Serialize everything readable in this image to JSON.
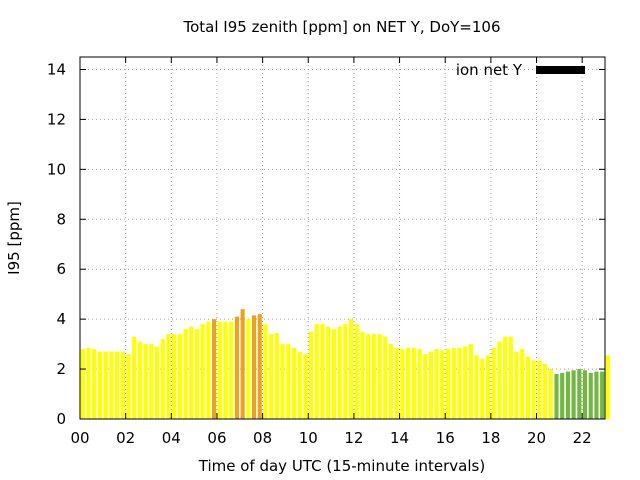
{
  "chart_data": {
    "type": "bar",
    "title": "Total I95 zenith [ppm] on NET Y, DoY=106",
    "xlabel": "Time of day UTC (15-minute intervals)",
    "ylabel": "I95 [ppm]",
    "xlim": [
      0,
      23
    ],
    "ylim": [
      0,
      14.5
    ],
    "grid": true,
    "legend": {
      "position": "top-right",
      "entries": [
        {
          "label": "ion net Y",
          "color": "#000000"
        }
      ]
    },
    "x_ticks": [
      {
        "value": 0,
        "label": "00"
      },
      {
        "value": 2,
        "label": "02"
      },
      {
        "value": 4,
        "label": "04"
      },
      {
        "value": 6,
        "label": "06"
      },
      {
        "value": 8,
        "label": "08"
      },
      {
        "value": 10,
        "label": "10"
      },
      {
        "value": 12,
        "label": "12"
      },
      {
        "value": 14,
        "label": "14"
      },
      {
        "value": 16,
        "label": "16"
      },
      {
        "value": 18,
        "label": "18"
      },
      {
        "value": 20,
        "label": "20"
      },
      {
        "value": 22,
        "label": "22"
      }
    ],
    "y_ticks": [
      {
        "value": 0,
        "label": "0"
      },
      {
        "value": 2,
        "label": "2"
      },
      {
        "value": 4,
        "label": "4"
      },
      {
        "value": 6,
        "label": "6"
      },
      {
        "value": 8,
        "label": "8"
      },
      {
        "value": 10,
        "label": "10"
      },
      {
        "value": 12,
        "label": "12"
      },
      {
        "value": 14,
        "label": "14"
      }
    ],
    "bar_interval_hours": 0.25,
    "colors": {
      "yellow": "#ffff00",
      "orange": "#f0a020",
      "green": "#70b840"
    },
    "values": [
      2.8,
      2.85,
      2.8,
      2.7,
      2.7,
      2.7,
      2.7,
      2.7,
      2.6,
      3.3,
      3.1,
      3.0,
      3.0,
      2.9,
      3.2,
      3.4,
      3.4,
      3.4,
      3.6,
      3.7,
      3.6,
      3.8,
      3.9,
      4.0,
      3.9,
      3.9,
      3.9,
      4.1,
      4.4,
      4.0,
      4.15,
      4.2,
      3.8,
      3.4,
      3.45,
      3.0,
      3.0,
      2.85,
      2.7,
      2.6,
      3.5,
      3.8,
      3.8,
      3.7,
      3.6,
      3.7,
      3.8,
      4.0,
      3.8,
      3.5,
      3.4,
      3.4,
      3.4,
      3.3,
      3.0,
      2.85,
      2.8,
      2.85,
      2.85,
      2.8,
      2.6,
      2.7,
      2.8,
      2.75,
      2.8,
      2.85,
      2.85,
      2.9,
      3.0,
      2.55,
      2.4,
      2.55,
      2.85,
      3.1,
      3.3,
      3.3,
      2.7,
      2.8,
      2.5,
      2.35,
      2.35,
      2.2,
      2.0,
      1.8,
      1.85,
      1.9,
      1.95,
      2.0,
      1.95,
      1.85,
      1.9,
      1.9,
      2.55
    ],
    "bar_colors": [
      "yellow",
      "yellow",
      "yellow",
      "yellow",
      "yellow",
      "yellow",
      "yellow",
      "yellow",
      "yellow",
      "yellow",
      "yellow",
      "yellow",
      "yellow",
      "yellow",
      "yellow",
      "yellow",
      "yellow",
      "yellow",
      "yellow",
      "yellow",
      "yellow",
      "yellow",
      "yellow",
      "orange",
      "yellow",
      "yellow",
      "yellow",
      "orange",
      "orange",
      "yellow",
      "orange",
      "orange",
      "yellow",
      "yellow",
      "yellow",
      "yellow",
      "yellow",
      "yellow",
      "yellow",
      "yellow",
      "yellow",
      "yellow",
      "yellow",
      "yellow",
      "yellow",
      "yellow",
      "yellow",
      "yellow",
      "yellow",
      "yellow",
      "yellow",
      "yellow",
      "yellow",
      "yellow",
      "yellow",
      "yellow",
      "yellow",
      "yellow",
      "yellow",
      "yellow",
      "yellow",
      "yellow",
      "yellow",
      "yellow",
      "yellow",
      "yellow",
      "yellow",
      "yellow",
      "yellow",
      "yellow",
      "yellow",
      "yellow",
      "yellow",
      "yellow",
      "yellow",
      "yellow",
      "yellow",
      "yellow",
      "yellow",
      "yellow",
      "yellow",
      "yellow",
      "yellow",
      "green",
      "green",
      "green",
      "green",
      "green",
      "green",
      "green",
      "green",
      "green",
      "yellow"
    ]
  }
}
